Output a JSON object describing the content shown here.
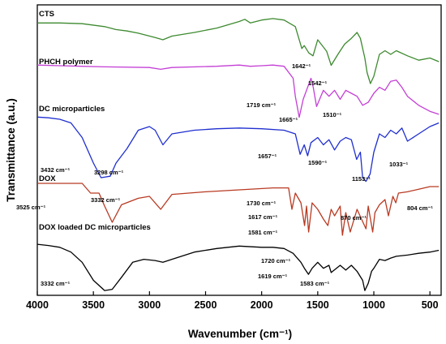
{
  "chart_data": {
    "type": "line",
    "xlabel": "Wavenumber (cm⁻¹)",
    "ylabel": "Transmittance (a.u.)",
    "xlim": [
      4000,
      400
    ],
    "x_reversed": true,
    "x_ticks": [
      "4000",
      "3500",
      "3000",
      "2500",
      "2000",
      "1500",
      "1000",
      "500"
    ],
    "y_ticks_shown": false,
    "series": [
      {
        "name": "CTS",
        "color": "#3d8a2f",
        "points": [
          [
            4000,
            0.93
          ],
          [
            3800,
            0.93
          ],
          [
            3600,
            0.92
          ],
          [
            3400,
            0.88
          ],
          [
            3300,
            0.84
          ],
          [
            3200,
            0.82
          ],
          [
            3100,
            0.79
          ],
          [
            2950,
            0.73
          ],
          [
            2880,
            0.7
          ],
          [
            2800,
            0.75
          ],
          [
            2600,
            0.8
          ],
          [
            2400,
            0.86
          ],
          [
            2200,
            0.95
          ],
          [
            2150,
            0.98
          ],
          [
            2100,
            0.93
          ],
          [
            2000,
            0.97
          ],
          [
            1900,
            0.99
          ],
          [
            1800,
            0.97
          ],
          [
            1700,
            0.88
          ],
          [
            1642,
            0.58
          ],
          [
            1620,
            0.62
          ],
          [
            1580,
            0.52
          ],
          [
            1542,
            0.48
          ],
          [
            1500,
            0.7
          ],
          [
            1450,
            0.6
          ],
          [
            1420,
            0.54
          ],
          [
            1380,
            0.35
          ],
          [
            1320,
            0.5
          ],
          [
            1260,
            0.64
          ],
          [
            1200,
            0.72
          ],
          [
            1150,
            0.8
          ],
          [
            1120,
            0.72
          ],
          [
            1080,
            0.45
          ],
          [
            1060,
            0.25
          ],
          [
            1030,
            0.1
          ],
          [
            1000,
            0.2
          ],
          [
            950,
            0.5
          ],
          [
            900,
            0.55
          ],
          [
            850,
            0.5
          ],
          [
            800,
            0.55
          ],
          [
            700,
            0.48
          ],
          [
            600,
            0.42
          ],
          [
            500,
            0.45
          ],
          [
            420,
            0.4
          ]
        ]
      },
      {
        "name": "PHCH polymer",
        "color": "#c43fd6",
        "points": [
          [
            4000,
            0.97
          ],
          [
            3800,
            0.96
          ],
          [
            3600,
            0.95
          ],
          [
            3400,
            0.94
          ],
          [
            3000,
            0.93
          ],
          [
            2900,
            0.9
          ],
          [
            2800,
            0.93
          ],
          [
            2400,
            0.95
          ],
          [
            2200,
            0.97
          ],
          [
            2100,
            0.95
          ],
          [
            2000,
            0.96
          ],
          [
            1900,
            0.97
          ],
          [
            1800,
            0.95
          ],
          [
            1719,
            0.75
          ],
          [
            1700,
            0.45
          ],
          [
            1665,
            0.1
          ],
          [
            1630,
            0.4
          ],
          [
            1600,
            0.55
          ],
          [
            1560,
            0.75
          ],
          [
            1540,
            0.6
          ],
          [
            1510,
            0.28
          ],
          [
            1450,
            0.55
          ],
          [
            1400,
            0.45
          ],
          [
            1350,
            0.55
          ],
          [
            1300,
            0.4
          ],
          [
            1250,
            0.55
          ],
          [
            1200,
            0.5
          ],
          [
            1150,
            0.45
          ],
          [
            1100,
            0.3
          ],
          [
            1050,
            0.35
          ],
          [
            1000,
            0.5
          ],
          [
            950,
            0.6
          ],
          [
            900,
            0.55
          ],
          [
            850,
            0.7
          ],
          [
            800,
            0.72
          ],
          [
            750,
            0.6
          ],
          [
            700,
            0.45
          ],
          [
            600,
            0.3
          ],
          [
            500,
            0.2
          ],
          [
            420,
            0.15
          ]
        ]
      },
      {
        "name": "DC microparticles",
        "color": "#1f2fcf",
        "points": [
          [
            4000,
            0.93
          ],
          [
            3900,
            0.92
          ],
          [
            3800,
            0.9
          ],
          [
            3700,
            0.85
          ],
          [
            3600,
            0.65
          ],
          [
            3500,
            0.3
          ],
          [
            3432,
            0.1
          ],
          [
            3350,
            0.12
          ],
          [
            3298,
            0.3
          ],
          [
            3200,
            0.5
          ],
          [
            3100,
            0.75
          ],
          [
            3000,
            0.8
          ],
          [
            2950,
            0.75
          ],
          [
            2880,
            0.55
          ],
          [
            2800,
            0.7
          ],
          [
            2600,
            0.75
          ],
          [
            2400,
            0.77
          ],
          [
            2200,
            0.78
          ],
          [
            2000,
            0.77
          ],
          [
            1800,
            0.75
          ],
          [
            1700,
            0.7
          ],
          [
            1657,
            0.42
          ],
          [
            1620,
            0.55
          ],
          [
            1590,
            0.4
          ],
          [
            1560,
            0.58
          ],
          [
            1500,
            0.65
          ],
          [
            1450,
            0.55
          ],
          [
            1400,
            0.62
          ],
          [
            1350,
            0.48
          ],
          [
            1300,
            0.6
          ],
          [
            1250,
            0.65
          ],
          [
            1200,
            0.62
          ],
          [
            1153,
            0.35
          ],
          [
            1120,
            0.45
          ],
          [
            1100,
            0.1
          ],
          [
            1070,
            0.05
          ],
          [
            1033,
            0.15
          ],
          [
            1000,
            0.45
          ],
          [
            950,
            0.7
          ],
          [
            900,
            0.65
          ],
          [
            850,
            0.75
          ],
          [
            800,
            0.7
          ],
          [
            750,
            0.78
          ],
          [
            700,
            0.6
          ],
          [
            600,
            0.7
          ],
          [
            500,
            0.8
          ],
          [
            420,
            0.85
          ]
        ]
      },
      {
        "name": "DOX",
        "color": "#b83a22",
        "points": [
          [
            4000,
            0.95
          ],
          [
            3800,
            0.95
          ],
          [
            3600,
            0.95
          ],
          [
            3525,
            0.8
          ],
          [
            3450,
            0.8
          ],
          [
            3400,
            0.6
          ],
          [
            3332,
            0.35
          ],
          [
            3250,
            0.62
          ],
          [
            3100,
            0.72
          ],
          [
            3000,
            0.75
          ],
          [
            2900,
            0.55
          ],
          [
            2800,
            0.78
          ],
          [
            2500,
            0.82
          ],
          [
            2200,
            0.85
          ],
          [
            1900,
            0.88
          ],
          [
            1760,
            0.88
          ],
          [
            1730,
            0.55
          ],
          [
            1700,
            0.8
          ],
          [
            1650,
            0.65
          ],
          [
            1617,
            0.3
          ],
          [
            1600,
            0.6
          ],
          [
            1581,
            0.2
          ],
          [
            1550,
            0.65
          ],
          [
            1500,
            0.55
          ],
          [
            1450,
            0.4
          ],
          [
            1410,
            0.3
          ],
          [
            1380,
            0.55
          ],
          [
            1350,
            0.45
          ],
          [
            1300,
            0.6
          ],
          [
            1280,
            0.15
          ],
          [
            1250,
            0.5
          ],
          [
            1210,
            0.2
          ],
          [
            1150,
            0.55
          ],
          [
            1110,
            0.4
          ],
          [
            1070,
            0.25
          ],
          [
            1050,
            0.6
          ],
          [
            1010,
            0.2
          ],
          [
            990,
            0.5
          ],
          [
            950,
            0.62
          ],
          [
            900,
            0.7
          ],
          [
            870,
            0.45
          ],
          [
            830,
            0.75
          ],
          [
            804,
            0.65
          ],
          [
            780,
            0.8
          ],
          [
            700,
            0.82
          ],
          [
            600,
            0.86
          ],
          [
            500,
            0.9
          ],
          [
            420,
            0.9
          ]
        ]
      },
      {
        "name": "DOX loaded DC microparticles",
        "color": "#000000",
        "points": [
          [
            4000,
            0.85
          ],
          [
            3900,
            0.83
          ],
          [
            3800,
            0.8
          ],
          [
            3700,
            0.72
          ],
          [
            3600,
            0.55
          ],
          [
            3500,
            0.25
          ],
          [
            3400,
            0.08
          ],
          [
            3332,
            0.1
          ],
          [
            3250,
            0.3
          ],
          [
            3150,
            0.55
          ],
          [
            3050,
            0.6
          ],
          [
            2950,
            0.58
          ],
          [
            2880,
            0.55
          ],
          [
            2800,
            0.6
          ],
          [
            2600,
            0.72
          ],
          [
            2400,
            0.78
          ],
          [
            2200,
            0.82
          ],
          [
            2000,
            0.8
          ],
          [
            1900,
            0.8
          ],
          [
            1800,
            0.78
          ],
          [
            1720,
            0.7
          ],
          [
            1650,
            0.55
          ],
          [
            1619,
            0.45
          ],
          [
            1583,
            0.35
          ],
          [
            1550,
            0.45
          ],
          [
            1500,
            0.55
          ],
          [
            1450,
            0.45
          ],
          [
            1400,
            0.5
          ],
          [
            1380,
            0.38
          ],
          [
            1300,
            0.5
          ],
          [
            1250,
            0.42
          ],
          [
            1200,
            0.5
          ],
          [
            1150,
            0.4
          ],
          [
            1100,
            0.25
          ],
          [
            1080,
            0.08
          ],
          [
            1050,
            0.2
          ],
          [
            1020,
            0.4
          ],
          [
            1000,
            0.45
          ],
          [
            950,
            0.6
          ],
          [
            900,
            0.58
          ],
          [
            850,
            0.62
          ],
          [
            800,
            0.65
          ],
          [
            700,
            0.67
          ],
          [
            600,
            0.7
          ],
          [
            500,
            0.72
          ],
          [
            420,
            0.75
          ]
        ]
      }
    ],
    "annotations": [
      {
        "text": "1642⁻¹",
        "series": 0
      },
      {
        "text": "1542⁻¹",
        "series": 0
      },
      {
        "text": "1719 cm⁻¹",
        "series": 1
      },
      {
        "text": "1665⁻¹",
        "series": 1
      },
      {
        "text": "1510⁻¹",
        "series": 1
      },
      {
        "text": "3432 cm⁻¹",
        "series": 2
      },
      {
        "text": "3298 cm⁻¹",
        "series": 2
      },
      {
        "text": "1657⁻¹",
        "series": 2
      },
      {
        "text": "1590⁻¹",
        "series": 2
      },
      {
        "text": "1153⁻¹",
        "series": 2
      },
      {
        "text": "1033⁻¹",
        "series": 2
      },
      {
        "text": "3525 cm⁻¹",
        "series": 3
      },
      {
        "text": "3332 cm⁻¹",
        "series": 3
      },
      {
        "text": "1730 cm⁻¹",
        "series": 3
      },
      {
        "text": "1617 cm⁻¹",
        "series": 3
      },
      {
        "text": "1581 cm⁻¹",
        "series": 3
      },
      {
        "text": "870 cm⁻¹",
        "series": 3
      },
      {
        "text": "804 cm⁻¹",
        "series": 3
      },
      {
        "text": "1720 cm⁻¹",
        "series": 4
      },
      {
        "text": "1619 cm⁻¹",
        "series": 4
      },
      {
        "text": "1583 cm⁻¹",
        "series": 4
      },
      {
        "text": "3332 cm⁻¹",
        "series": 4
      }
    ]
  }
}
